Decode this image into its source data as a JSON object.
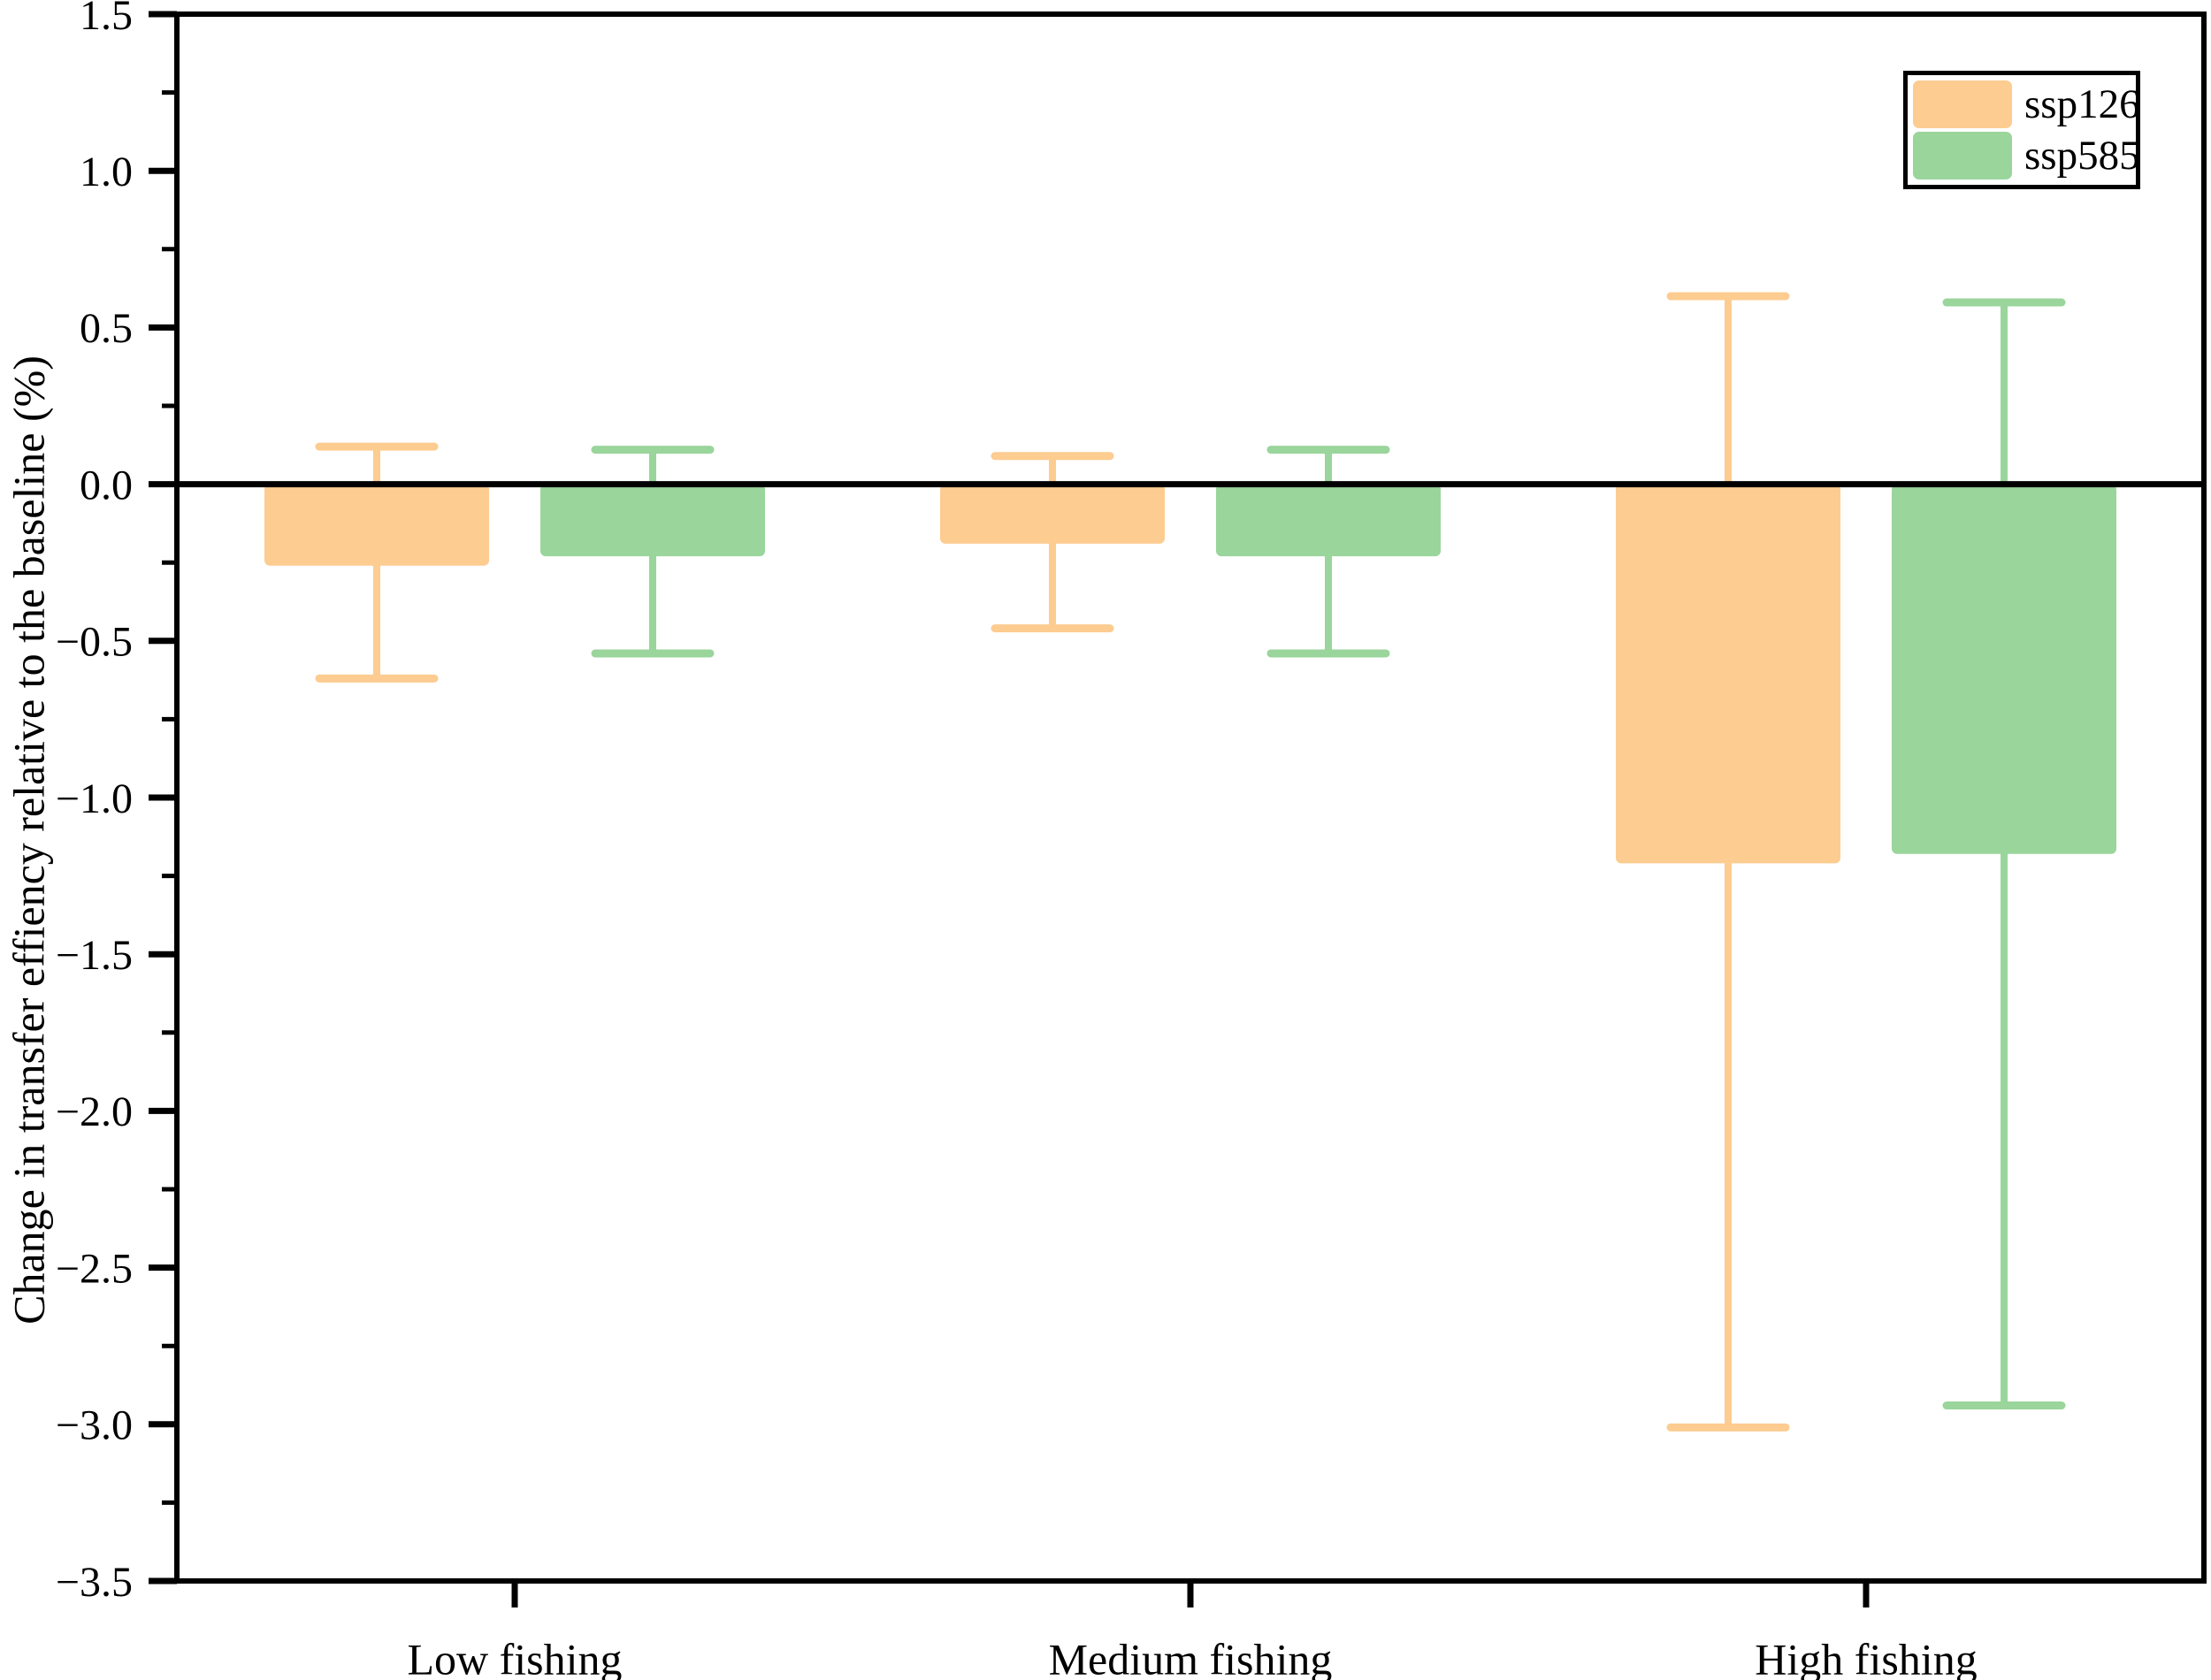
{
  "figure": {
    "background": "#ffffff",
    "axis_color": "#000000"
  },
  "chart_data": {
    "type": "bar",
    "title": "",
    "xlabel": "",
    "ylabel": "Change in transfer effiency relative to the baseline (%)",
    "categories": [
      "Low fishing",
      "Medium fishing",
      "High fishing"
    ],
    "ylim": [
      -3.5,
      1.5
    ],
    "y_major_ticks": [
      1.5,
      1.0,
      0.5,
      0.0,
      -0.5,
      -1.0,
      -1.5,
      -2.0,
      -2.5,
      -3.0,
      -3.5
    ],
    "y_tick_labels": [
      "1.5",
      "1.0",
      "0.5",
      "0.0",
      "−0.5",
      "−1.0",
      "−1.5",
      "−2.0",
      "−2.5",
      "−3.0",
      "−3.5"
    ],
    "y_minor_ticks": [
      1.25,
      0.75,
      0.25,
      -0.25,
      -0.75,
      -1.25,
      -1.75,
      -2.25,
      -2.75,
      -3.25
    ],
    "grid": false,
    "legend_position": "top-right",
    "series": [
      {
        "name": "ssp126",
        "color": "#FDCC90",
        "values": [
          -0.26,
          -0.19,
          -1.21
        ],
        "whisker_top": [
          0.12,
          0.09,
          0.6
        ],
        "whisker_bottom": [
          -0.62,
          -0.46,
          -3.01
        ]
      },
      {
        "name": "ssp585",
        "color": "#9AD59B",
        "values": [
          -0.23,
          -0.23,
          -1.18
        ],
        "whisker_top": [
          0.11,
          0.11,
          0.58
        ],
        "whisker_bottom": [
          -0.54,
          -0.54,
          -2.94
        ]
      }
    ]
  }
}
